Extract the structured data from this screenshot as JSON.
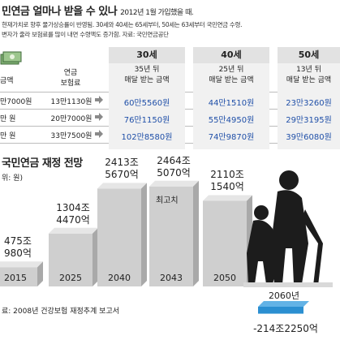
{
  "top": {
    "title": "민연금 얼마나 받을 수 있나",
    "title_sub": "2012년 1월 가입했을 때.",
    "note1": "현재가치로 향후 물가상승률이 반영됨. 30세와 40세는 65세부터, 50세는 63세부터 국민연금 수령.",
    "note2": "변자가 줄라 보험료를 많이 내면 수령액도 증가함. 자료: 국민연금공단",
    "income_head": "금액",
    "pay_head": "연금\n보험료",
    "rows": [
      {
        "income": "만7000원",
        "pay": "13만1130원",
        "vals": [
          "60만5560원",
          "44만1510원",
          "23만3260원"
        ]
      },
      {
        "income": "만 원",
        "pay": "20만7000원",
        "vals": [
          "76만1150원",
          "55만4950원",
          "29만3195원"
        ]
      },
      {
        "income": "만 원",
        "pay": "33만7500원",
        "vals": [
          "102만8580원",
          "74만9870원",
          "39만6080원"
        ]
      }
    ],
    "ages": [
      {
        "age": "30세",
        "caption": "35년 뒤\n매달 받는 금액"
      },
      {
        "age": "40세",
        "caption": "25년 뒤\n매달 받는 금액"
      },
      {
        "age": "50세",
        "caption": "13년 뒤\n매달 받는 금액"
      }
    ]
  },
  "chart_data": {
    "type": "bar",
    "title": "국민연금 재정 전망",
    "ylabel": "위: 원)",
    "categories": [
      "2015",
      "2025",
      "2040",
      "2043",
      "2050",
      "2060년"
    ],
    "values": [
      475.098,
      1304.447,
      2413.567,
      2464.507,
      2110.154,
      -214.225
    ],
    "value_unit": "조원",
    "labels": [
      "475조\n980억",
      "1304조\n4470억",
      "2413조\n5670억",
      "2464조\n5070억",
      "2110조\n1540억",
      "-214조2250억"
    ],
    "annotation": {
      "category": "2043",
      "text": "최고치"
    },
    "colors": {
      "bar": "#cfcfcf",
      "negative": "#2b8fd1"
    },
    "source": "료: 2008년 건강보험 재정추계 보고서"
  }
}
